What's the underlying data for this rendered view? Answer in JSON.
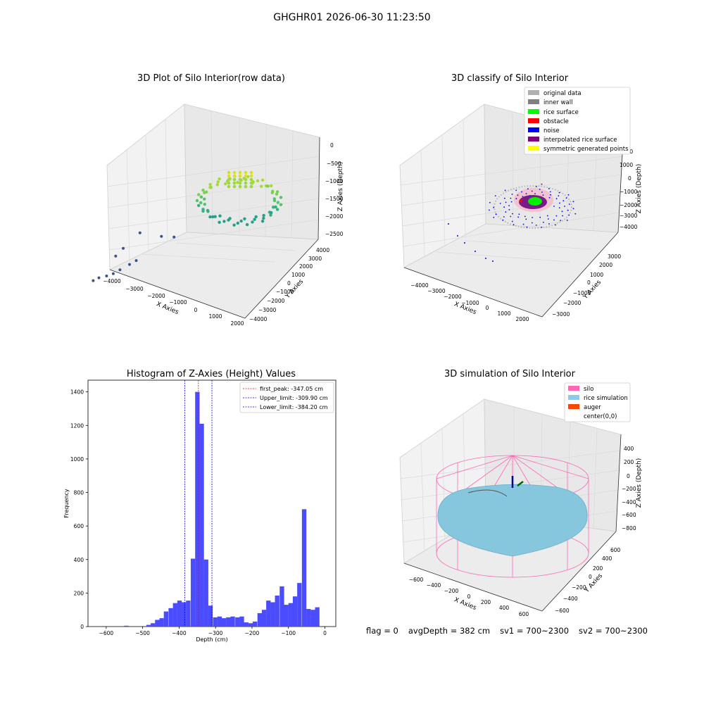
{
  "figure_title": "GHGHR01 2026-06-30 11:23:50",
  "status": {
    "flag": "flag = 0",
    "avg_depth": "avgDepth = 382 cm",
    "sv1": "sv1 = 700~2300",
    "sv2": "sv2 = 700~2300"
  },
  "colors": {
    "raw_low": "#3b2d6b",
    "raw_mid": "#20a386",
    "raw_high": "#d9e022",
    "hist_bar": "#4c4cff",
    "peak_line": "#ff0000",
    "limit_line": "#0000ff",
    "pane": "#f2f2f2",
    "grid": "#dcdcdc"
  },
  "chart_data": [
    {
      "type": "scatter",
      "title": "3D Plot of Silo Interior(row data)",
      "xlabel": "X Axies",
      "ylabel": "Y Axies",
      "zlabel": "Z Axies (Depth)",
      "xticks": [
        "−4000",
        "−3000",
        "−2000",
        "−1000",
        "0",
        "1000",
        "2000"
      ],
      "yticks": [
        "−4000",
        "−3000",
        "−2000",
        "−1000",
        "0",
        "1000",
        "2000",
        "3000",
        "4000"
      ],
      "zticks": [
        "0",
        "−500",
        "−1000",
        "−1500",
        "−2000",
        "−2500"
      ],
      "xlim": [
        -4200,
        2200
      ],
      "ylim": [
        -4200,
        4200
      ],
      "zlim": [
        -2700,
        100
      ],
      "points": [
        {
          "x": -4000,
          "y": -3200,
          "z": -2500
        },
        {
          "x": -3700,
          "y": -2900,
          "z": -2400
        },
        {
          "x": -3200,
          "y": -2600,
          "z": -2300
        },
        {
          "x": -2800,
          "y": -2300,
          "z": -2200
        },
        {
          "x": -2400,
          "y": -2000,
          "z": -2000
        },
        {
          "x": -1800,
          "y": -1600,
          "z": -1700
        },
        {
          "x": -1400,
          "y": -1300,
          "z": -1500
        },
        {
          "x": -3300,
          "y": -1500,
          "z": -1700
        },
        {
          "x": -3000,
          "y": -1000,
          "z": -1400
        },
        {
          "x": -2600,
          "y": 400,
          "z": -1100
        },
        {
          "x": -700,
          "y": 700,
          "z": -900
        },
        {
          "x": 300,
          "y": 1000,
          "z": -800
        }
      ]
    },
    {
      "type": "scatter",
      "title": "3D classify of Silo Interior",
      "xlabel": "X Axies",
      "ylabel": "Y Axies",
      "zlabel": "Z Axies (Depth)",
      "xticks": [
        "−4000",
        "−3000",
        "−2000",
        "−1000",
        "0",
        "1000",
        "2000"
      ],
      "yticks": [
        "−3000",
        "−2000",
        "−1000",
        "0",
        "1000",
        "2000",
        "3000"
      ],
      "zticks": [
        "2000",
        "1000",
        "0",
        "−1000",
        "−2000",
        "−3000",
        "−4000"
      ],
      "xlim": [
        -4500,
        2200
      ],
      "ylim": [
        -3500,
        3500
      ],
      "zlim": [
        -4500,
        2500
      ],
      "legend_position": "top-right",
      "legend": [
        {
          "label": "original data",
          "color": "#b0b0b0"
        },
        {
          "label": "inner wall",
          "color": "#808080"
        },
        {
          "label": "rice surface",
          "color": "#00ff00"
        },
        {
          "label": "obstacle",
          "color": "#ff0000"
        },
        {
          "label": "noise",
          "color": "#0000ff"
        },
        {
          "label": "interpolated rice surface",
          "color": "#800080"
        },
        {
          "label": "symmetric generated points",
          "color": "#ffff00"
        }
      ]
    },
    {
      "type": "bar",
      "title": "Histogram of Z-Axies (Height) Values",
      "xlabel": "Depth (cm)",
      "ylabel": "Frequency",
      "xlim": [
        -650,
        30
      ],
      "ylim": [
        0,
        1470
      ],
      "xticks": [
        "−600",
        "−500",
        "−400",
        "−300",
        "−200",
        "−100",
        "0"
      ],
      "yticks": [
        "0",
        "200",
        "400",
        "600",
        "800",
        "1000",
        "1200",
        "1400"
      ],
      "bin_width": 12.2,
      "bins_start": [
        -600,
        -588,
        -576,
        -564,
        -551,
        -539,
        -527,
        -515,
        -503,
        -490,
        -478,
        -466,
        -454,
        -442,
        -429,
        -417,
        -405,
        -393,
        -381,
        -368,
        -356,
        -344,
        -332,
        -320,
        -307,
        -295,
        -283,
        -271,
        -259,
        -246,
        -234,
        -222,
        -210,
        -198,
        -185,
        -173,
        -161,
        -149,
        -137,
        -124,
        -112,
        -100,
        -88,
        -76,
        -63,
        -51,
        -39,
        -27,
        -15,
        -2
      ],
      "values": [
        0,
        0,
        0,
        0,
        5,
        0,
        0,
        0,
        0,
        10,
        20,
        40,
        50,
        90,
        110,
        140,
        155,
        145,
        155,
        405,
        1400,
        1210,
        400,
        125,
        55,
        60,
        50,
        55,
        60,
        55,
        60,
        25,
        20,
        30,
        80,
        100,
        155,
        145,
        185,
        240,
        130,
        140,
        180,
        260,
        700,
        105,
        100,
        115,
        0,
        0
      ],
      "vlines": [
        {
          "label": "first_peak: -347.05 cm",
          "x": -347.05,
          "color": "#ff0000"
        },
        {
          "label": "Upper_limit: -309.90 cm",
          "x": -309.9,
          "color": "#0000ff"
        },
        {
          "label": "Lower_limit: -384.20 cm",
          "x": -384.2,
          "color": "#0000ff"
        }
      ],
      "legend_position": "top-right"
    },
    {
      "type": "area",
      "title": "3D simulation of Silo Interior",
      "xlabel": "X Axies",
      "ylabel": "Y Axies",
      "zlabel": "Z Axies (Depth)",
      "xticks": [
        "−600",
        "−400",
        "−200",
        "0",
        "200",
        "400",
        "600"
      ],
      "yticks": [
        "−600",
        "−400",
        "−200",
        "0",
        "200",
        "400",
        "600"
      ],
      "zticks": [
        "400",
        "200",
        "0",
        "−200",
        "−400",
        "−600",
        "−800"
      ],
      "xlim": [
        -700,
        700
      ],
      "ylim": [
        -700,
        700
      ],
      "zlim": [
        -900,
        500
      ],
      "legend_position": "top-right",
      "legend": [
        {
          "label": "silo",
          "color": "#ff69b4"
        },
        {
          "label": "rice simulation",
          "color": "#87ceeb"
        },
        {
          "label": "auger",
          "color": "#ff4500"
        },
        {
          "label": "center(0,0)",
          "color": ""
        }
      ]
    }
  ]
}
